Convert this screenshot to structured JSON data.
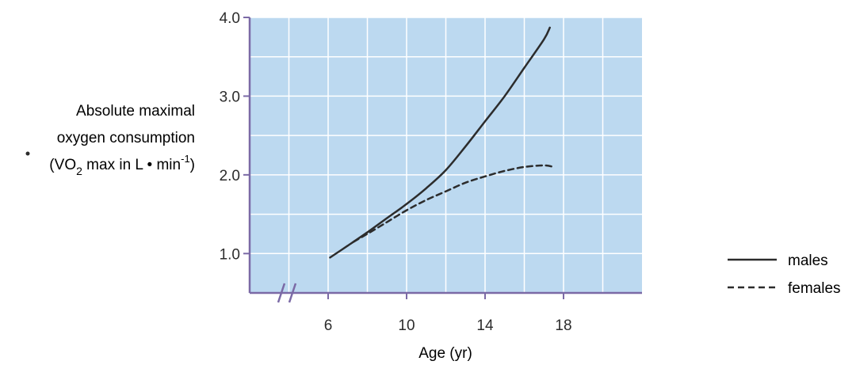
{
  "chart_data": {
    "type": "line",
    "xlabel": "Age (yr)",
    "ylabel_lines": [
      "Absolute maximal",
      "oxygen consumption"
    ],
    "ylabel_formula": {
      "open": "(",
      "v": "V",
      "o": "O",
      "sub": "2",
      "rest": " max in L • min",
      "sup": "-1",
      "close": ")"
    },
    "xlim": [
      2,
      22
    ],
    "ylim": [
      0.5,
      4.0
    ],
    "x_ticks": [
      6,
      10,
      14,
      18
    ],
    "x_tick_labels": [
      "6",
      "10",
      "14",
      "18"
    ],
    "y_ticks": [
      1.0,
      2.0,
      3.0,
      4.0
    ],
    "y_tick_labels": [
      "1.0",
      "2.0",
      "3.0",
      "4.0"
    ],
    "x_grid": [
      4,
      6,
      8,
      10,
      12,
      14,
      16,
      18,
      20
    ],
    "y_grid": [
      1.0,
      1.5,
      2.0,
      2.5,
      3.0,
      3.5,
      4.0
    ],
    "grid": true,
    "axis_break": true,
    "legend_position": "right",
    "series": [
      {
        "name": "males",
        "line_style": "solid",
        "x": [
          6.1,
          7,
          8,
          9,
          10,
          11,
          12,
          13,
          14,
          15,
          16,
          17,
          17.3
        ],
        "y": [
          0.95,
          1.1,
          1.27,
          1.45,
          1.63,
          1.83,
          2.06,
          2.36,
          2.68,
          3.0,
          3.36,
          3.72,
          3.87
        ]
      },
      {
        "name": "females",
        "line_style": "dashed",
        "x": [
          7.3,
          8,
          9,
          10,
          11,
          12,
          13,
          14,
          15,
          16,
          17,
          17.5
        ],
        "y": [
          1.15,
          1.25,
          1.4,
          1.55,
          1.68,
          1.79,
          1.9,
          1.98,
          2.05,
          2.1,
          2.12,
          2.1
        ]
      }
    ],
    "colors": {
      "plot_background": "#bcd9f0",
      "grid": "#ffffff",
      "axis": "#7b6aa6",
      "line": "#2c2c2c",
      "text": "#2c2c2c"
    }
  }
}
